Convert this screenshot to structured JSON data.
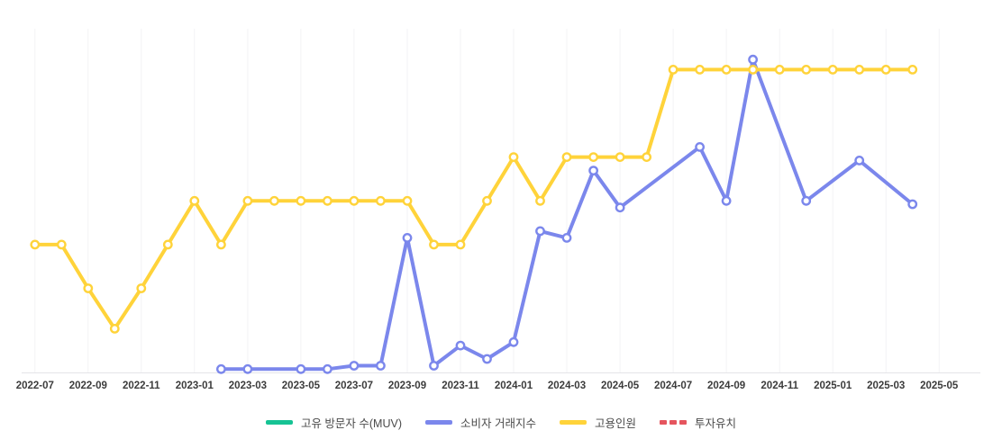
{
  "page": {
    "background": "#ffffff"
  },
  "chart_data": {
    "type": "line",
    "x": [
      "2022-07",
      "2022-08",
      "2022-09",
      "2022-10",
      "2022-11",
      "2022-12",
      "2023-01",
      "2023-02",
      "2023-03",
      "2023-04",
      "2023-05",
      "2023-06",
      "2023-07",
      "2023-08",
      "2023-09",
      "2023-10",
      "2023-11",
      "2023-12",
      "2024-01",
      "2024-02",
      "2024-03",
      "2024-04",
      "2024-05",
      "2024-06",
      "2024-07",
      "2024-08",
      "2024-09",
      "2024-10",
      "2024-11",
      "2024-12",
      "2025-01",
      "2025-02",
      "2025-03",
      "2025-04",
      "2025-05"
    ],
    "x_tick_step": 2,
    "x_tick_labels": [
      "2022-07",
      "2022-09",
      "2022-11",
      "2023-01",
      "2023-03",
      "2023-05",
      "2023-07",
      "2023-09",
      "2023-11",
      "2024-01",
      "2024-03",
      "2024-05",
      "2024-07",
      "2024-09",
      "2024-11",
      "2025-01",
      "2025-03",
      "2025-05"
    ],
    "title": "",
    "xlabel": "",
    "ylabel": "",
    "ylim": [
      0,
      100
    ],
    "y_axis_visible": false,
    "grid": "vertical-only",
    "legend_position": "bottom",
    "series": [
      {
        "id": "muv",
        "name": "고유 방문자 수(MUV)",
        "color": "#16c394",
        "dash": false,
        "values": [
          null,
          null,
          null,
          null,
          null,
          null,
          null,
          null,
          null,
          null,
          null,
          null,
          null,
          null,
          null,
          null,
          null,
          null,
          null,
          null,
          null,
          null,
          null,
          null,
          null,
          null,
          null,
          null,
          null,
          null,
          null,
          null,
          null,
          null,
          null
        ]
      },
      {
        "id": "consumer-index",
        "name": "소비자 거래지수",
        "color": "#7b87ec",
        "dash": false,
        "values": [
          null,
          null,
          null,
          null,
          null,
          null,
          null,
          1,
          1,
          null,
          1,
          1,
          2,
          2,
          40,
          2,
          8,
          4,
          9,
          42,
          40,
          60,
          49,
          null,
          null,
          67,
          51,
          93,
          null,
          51,
          null,
          63,
          null,
          50,
          null
        ]
      },
      {
        "id": "employment",
        "name": "고용인원",
        "color": "#ffd33a",
        "dash": false,
        "values": [
          38,
          38,
          25,
          13,
          25,
          38,
          51,
          38,
          51,
          51,
          51,
          51,
          51,
          51,
          51,
          38,
          38,
          51,
          64,
          51,
          64,
          64,
          64,
          64,
          90,
          90,
          90,
          90,
          90,
          90,
          90,
          90,
          90,
          90,
          null
        ]
      },
      {
        "id": "investment",
        "name": "투자유치",
        "color": "#e5555e",
        "dash": true,
        "values": [
          null,
          null,
          null,
          null,
          null,
          null,
          null,
          null,
          null,
          null,
          null,
          null,
          null,
          null,
          null,
          null,
          null,
          null,
          null,
          null,
          null,
          null,
          null,
          null,
          null,
          null,
          null,
          null,
          null,
          null,
          null,
          null,
          null,
          null,
          null
        ]
      }
    ],
    "style": {
      "axis_color": "#e4e4e8",
      "grid_color": "#f3f3f5",
      "tick_color": "#3c3c3c",
      "legend_text_color": "#4a4a4a",
      "marker_fill": "#ffffff"
    }
  }
}
